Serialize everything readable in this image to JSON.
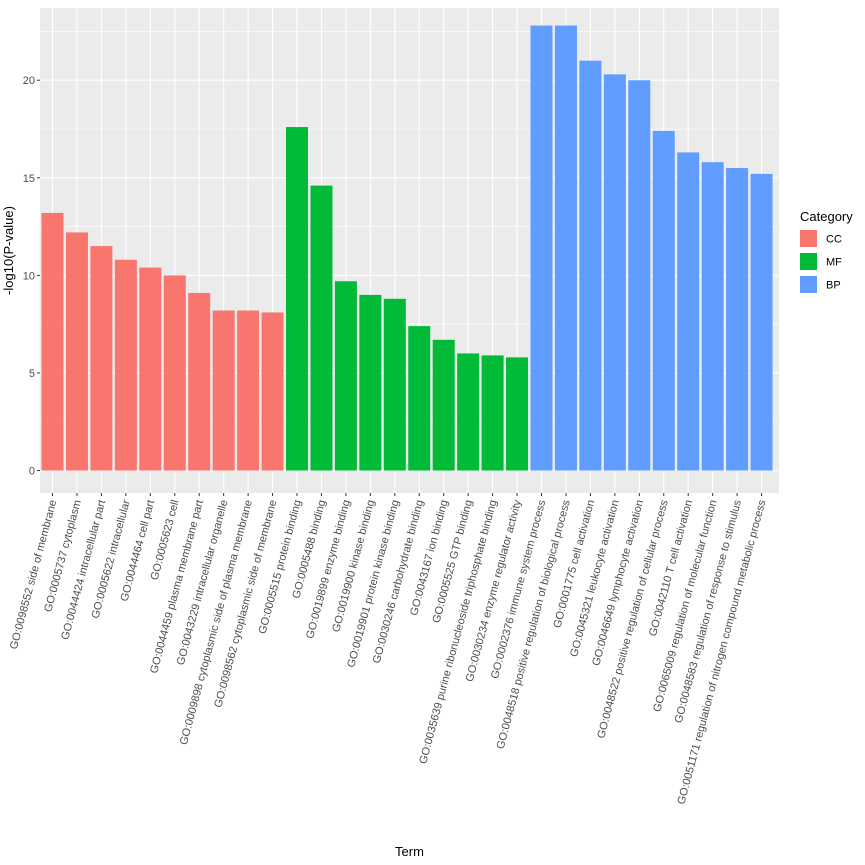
{
  "chart_data": {
    "type": "bar",
    "title": "",
    "xlabel": "Term",
    "ylabel": "-log10(P-value)",
    "ylim": [
      -1.15,
      23.7
    ],
    "yticks": [
      0,
      5,
      10,
      15,
      20
    ],
    "grid": true,
    "legend_position": "right",
    "legend": {
      "title": "Category",
      "entries": [
        {
          "name": "CC",
          "color": "#F8766D"
        },
        {
          "name": "MF",
          "color": "#00BA38"
        },
        {
          "name": "BP",
          "color": "#619CFF"
        }
      ]
    },
    "categories": [
      "GO:0098552 side of membrane",
      "GO:0005737 cytoplasm",
      "GO:0044424 intracellular part",
      "GO:0005622 intracellular",
      "GO:0044464 cell part",
      "GO:0005623 cell",
      "GO:0044459 plasma membrane part",
      "GO:0043229 intracellular organelle",
      "GO:0009898 cytoplasmic side of plasma membrane",
      "GO:0098562 cytoplasmic side of membrane",
      "GO:0005515 protein binding",
      "GO:0005488 binding",
      "GO:0019899 enzyme binding",
      "GO:0019900 kinase binding",
      "GO:0019901 protein kinase binding",
      "GO:0030246 carbohydrate binding",
      "GO:0043167 ion binding",
      "GO:0005525 GTP binding",
      "GO:0035639 purine ribonucleoside triphosphate binding",
      "GO:0030234 enzyme regulator activity",
      "GO:0002376 immune system process",
      "GO:0048518 positive regulation of biological process",
      "GO:0001775 cell activation",
      "GO:0045321 leukocyte activation",
      "GO:0046649 lymphocyte activation",
      "GO:0048522 positive regulation of cellular process",
      "GO:0042110 T cell activation",
      "GO:0065009 regulation of molecular function",
      "GO:0048583 regulation of response to stimulus",
      "GO:0051171 regulation of nitrogen compound metabolic process"
    ],
    "values": [
      13.2,
      12.2,
      11.5,
      10.8,
      10.4,
      10.0,
      9.1,
      8.2,
      8.2,
      8.1,
      17.6,
      14.6,
      9.7,
      9.0,
      8.8,
      7.4,
      6.7,
      6.0,
      5.9,
      5.8,
      22.8,
      22.8,
      21.0,
      20.3,
      20.0,
      17.4,
      16.3,
      15.8,
      15.5,
      15.2
    ],
    "category_groups": [
      "CC",
      "CC",
      "CC",
      "CC",
      "CC",
      "CC",
      "CC",
      "CC",
      "CC",
      "CC",
      "MF",
      "MF",
      "MF",
      "MF",
      "MF",
      "MF",
      "MF",
      "MF",
      "MF",
      "MF",
      "BP",
      "BP",
      "BP",
      "BP",
      "BP",
      "BP",
      "BP",
      "BP",
      "BP",
      "BP"
    ]
  }
}
